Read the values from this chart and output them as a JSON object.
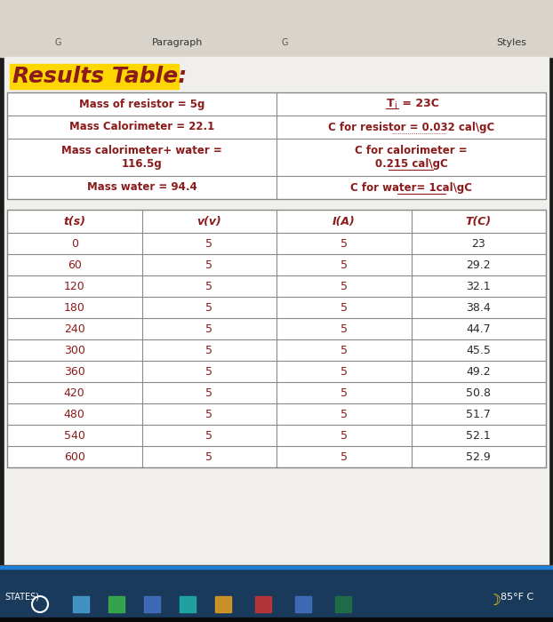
{
  "title": "Results Table:",
  "title_bg": "#FFD700",
  "title_color": "#8B1A1A",
  "title_fontsize": 18,
  "info_left": [
    "Mass of resistor = 5g",
    "Mass Calorimeter = 22.1",
    "Mass calorimeter+ water =\n116.5g",
    "Mass water = 94.4"
  ],
  "info_right_row0_parts": [
    "T",
    "i",
    " = 23C"
  ],
  "info_right": [
    "T_i = 23C",
    "C for resistor = 0.032 cal\\gC",
    "C for calorimeter =\n0.215 cal\\gC",
    "C for water= 1cal\\gC"
  ],
  "info_color": "#8B1A1A",
  "table_headers": [
    "t(s)",
    "v(v)",
    "I(A)",
    "T(C)"
  ],
  "table_data": [
    [
      "0",
      "5",
      "5",
      "23"
    ],
    [
      "60",
      "5",
      "5",
      "29.2"
    ],
    [
      "120",
      "5",
      "5",
      "32.1"
    ],
    [
      "180",
      "5",
      "5",
      "38.4"
    ],
    [
      "240",
      "5",
      "5",
      "44.7"
    ],
    [
      "300",
      "5",
      "5",
      "45.5"
    ],
    [
      "360",
      "5",
      "5",
      "49.2"
    ],
    [
      "420",
      "5",
      "5",
      "50.8"
    ],
    [
      "480",
      "5",
      "5",
      "51.7"
    ],
    [
      "540",
      "5",
      "5",
      "52.1"
    ],
    [
      "600",
      "5",
      "5",
      "52.9"
    ]
  ],
  "bg_outer": "#1C1C1C",
  "bg_screen": "#B8B8B8",
  "bg_white": "#F0EFEB",
  "bg_toolbar": "#D8D4CC",
  "taskbar_bg": "#1A3A5C",
  "taskbar_blue_line": "#1E7FD8",
  "paragraph_label": "Paragraph",
  "styles_label": "Styles",
  "states_label": "STATES)",
  "bottom_text": "85°F C",
  "grid_color": "#888888",
  "header_italic": true,
  "data_col_red": "#8B1A1A",
  "data_col_dark": "#2A2A2A"
}
